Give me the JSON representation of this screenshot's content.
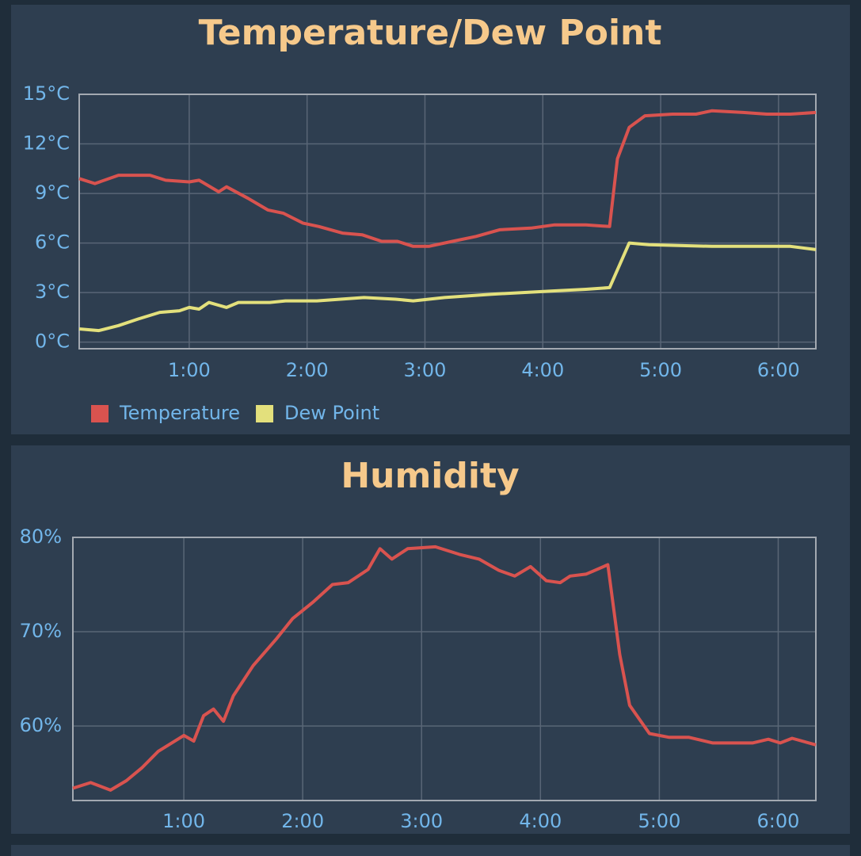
{
  "chart_data": [
    {
      "type": "line",
      "title": "Temperature/Dew Point",
      "xlim": [
        4,
        379
      ],
      "xticks": [
        {
          "value": 60,
          "label": "1:00"
        },
        {
          "value": 120,
          "label": "2:00"
        },
        {
          "value": 180,
          "label": "3:00"
        },
        {
          "value": 240,
          "label": "4:00"
        },
        {
          "value": 300,
          "label": "5:00"
        },
        {
          "value": 360,
          "label": "6:00"
        }
      ],
      "ylim": [
        -0.4,
        15
      ],
      "yticks": [
        {
          "value": 0,
          "label": "0°C"
        },
        {
          "value": 3,
          "label": "3°C"
        },
        {
          "value": 6,
          "label": "6°C"
        },
        {
          "value": 9,
          "label": "9°C"
        },
        {
          "value": 12,
          "label": "12°C"
        },
        {
          "value": 15,
          "label": "15°C"
        }
      ],
      "grid": true,
      "legend": "bottom-left",
      "series": [
        {
          "name": "Temperature",
          "color": "#d9534f",
          "x": [
            4,
            12,
            24,
            40,
            48,
            60,
            65,
            75,
            79,
            90,
            100,
            108,
            118,
            126,
            138,
            148,
            158,
            166,
            174,
            182,
            194,
            206,
            218,
            234,
            246,
            262,
            274,
            278,
            284,
            292,
            306,
            318,
            326,
            342,
            354,
            366,
            379
          ],
          "values": [
            9.9,
            9.6,
            10.1,
            10.1,
            9.8,
            9.7,
            9.8,
            9.1,
            9.4,
            8.7,
            8.0,
            7.8,
            7.2,
            7.0,
            6.6,
            6.5,
            6.1,
            6.1,
            5.8,
            5.8,
            6.1,
            6.4,
            6.8,
            6.9,
            7.1,
            7.1,
            7.0,
            11.1,
            13.0,
            13.7,
            13.8,
            13.8,
            14.0,
            13.9,
            13.8,
            13.8,
            13.9
          ]
        },
        {
          "name": "Dew Point",
          "color": "#e3e07c",
          "x": [
            4,
            14,
            24,
            34,
            45,
            55,
            60,
            65,
            70,
            79,
            85,
            101,
            109,
            125,
            149,
            165,
            174,
            190,
            214,
            230,
            246,
            262,
            274,
            284,
            294,
            326,
            350,
            366,
            379
          ],
          "values": [
            0.8,
            0.7,
            1.0,
            1.4,
            1.8,
            1.9,
            2.1,
            2.0,
            2.4,
            2.1,
            2.4,
            2.4,
            2.5,
            2.5,
            2.7,
            2.6,
            2.5,
            2.7,
            2.9,
            3.0,
            3.1,
            3.2,
            3.3,
            6.0,
            5.9,
            5.8,
            5.8,
            5.8,
            5.6
          ]
        }
      ]
    },
    {
      "type": "line",
      "title": "Humidity",
      "xlim": [
        4,
        379
      ],
      "xticks": [
        {
          "value": 60,
          "label": "1:00"
        },
        {
          "value": 120,
          "label": "2:00"
        },
        {
          "value": 180,
          "label": "3:00"
        },
        {
          "value": 240,
          "label": "4:00"
        },
        {
          "value": 300,
          "label": "5:00"
        },
        {
          "value": 360,
          "label": "6:00"
        }
      ],
      "ylim": [
        52.1,
        80
      ],
      "yticks": [
        {
          "value": 60,
          "label": "60%"
        },
        {
          "value": 70,
          "label": "70%"
        },
        {
          "value": 80,
          "label": "80%"
        }
      ],
      "grid": true,
      "color": "#d9534f",
      "x": [
        4,
        13,
        23,
        31,
        39,
        47,
        60,
        65,
        70,
        75,
        80,
        85,
        95,
        107,
        115,
        125,
        135,
        143,
        153,
        159,
        165,
        173,
        187,
        199,
        209,
        219,
        227,
        235,
        243,
        250,
        255,
        263,
        274,
        280,
        285,
        295,
        305,
        315,
        327,
        335,
        347,
        355,
        361,
        367,
        379
      ],
      "values": [
        53.4,
        54.0,
        53.2,
        54.2,
        55.6,
        57.3,
        59.0,
        58.4,
        61.1,
        61.8,
        60.5,
        63.2,
        66.4,
        69.3,
        71.4,
        73.1,
        75.0,
        75.2,
        76.6,
        78.8,
        77.7,
        78.8,
        79.0,
        78.2,
        77.7,
        76.5,
        75.9,
        76.9,
        75.4,
        75.2,
        75.9,
        76.1,
        77.1,
        67.6,
        62.2,
        59.2,
        58.8,
        58.8,
        58.2,
        58.2,
        58.2,
        58.6,
        58.2,
        58.7,
        58.0
      ]
    }
  ]
}
